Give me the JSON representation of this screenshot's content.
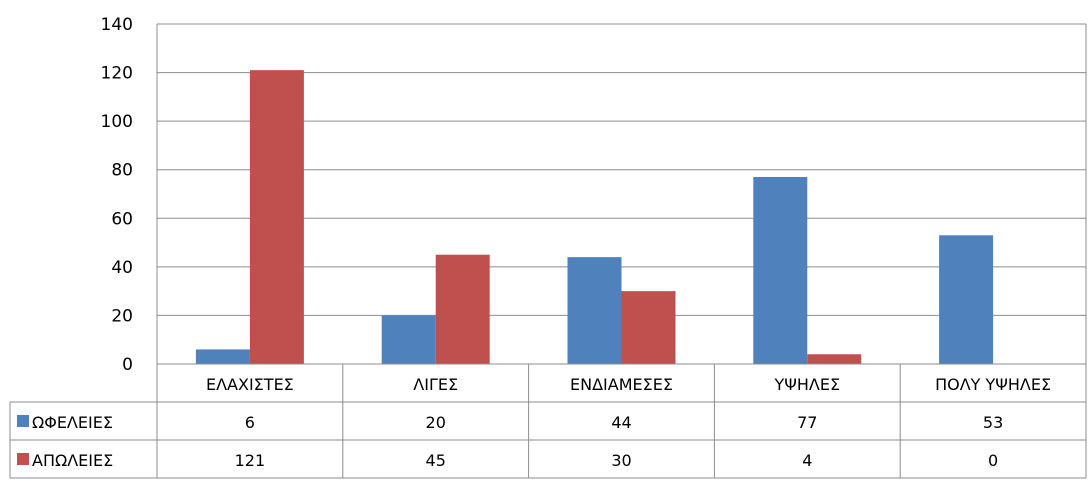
{
  "chart_data": {
    "type": "bar",
    "categories": [
      "ΕΛΑΧΙΣΤΕΣ",
      "ΛΙΓΕΣ",
      "ΕΝΔΙΑΜΕΣΕΣ",
      "ΥΨΗΛΕΣ",
      "ΠΟΛΥ ΥΨΗΛΕΣ"
    ],
    "series": [
      {
        "name": "ΩΦΕΛΕΙΕΣ",
        "values": [
          6,
          20,
          44,
          77,
          53
        ],
        "color": "#4F81BD"
      },
      {
        "name": "ΑΠΩΛΕΙΕΣ",
        "values": [
          121,
          45,
          30,
          4,
          0
        ],
        "color": "#C0504D"
      }
    ],
    "yticks": [
      "0",
      "20",
      "40",
      "60",
      "80",
      "100",
      "120",
      "140"
    ],
    "ylim": [
      0,
      140
    ],
    "grid": true,
    "legend": "data-table-left",
    "data_table": {
      "rows": [
        {
          "series": "ΩΦΕΛΕΙΕΣ",
          "cells": [
            "6",
            "20",
            "44",
            "77",
            "53"
          ]
        },
        {
          "series": "ΑΠΩΛΕΙΕΣ",
          "cells": [
            "121",
            "45",
            "30",
            "4",
            "0"
          ]
        }
      ]
    }
  }
}
